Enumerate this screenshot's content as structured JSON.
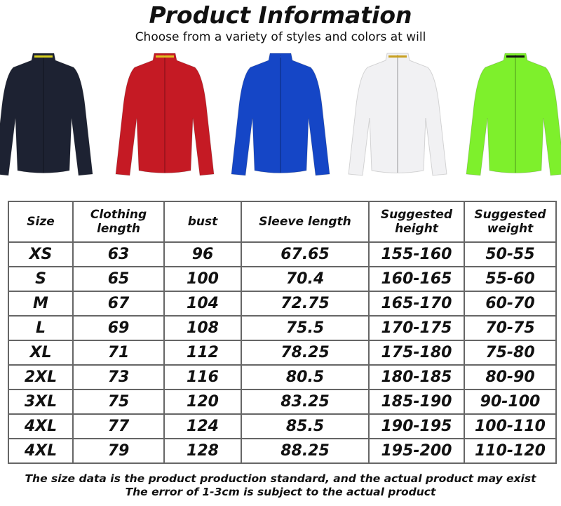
{
  "header": {
    "title": "Product Information",
    "subtitle": "Choose from a variety of styles and colors at will"
  },
  "jackets": [
    {
      "color": "#1d2232",
      "collar_stripe": "#d8d020"
    },
    {
      "color": "#c51a24",
      "collar_stripe": "#e0c020"
    },
    {
      "color": "#1546c6",
      "collar_stripe": "#1546c6"
    },
    {
      "color": "#f1f1f3",
      "collar_stripe": "#c8a020"
    },
    {
      "color": "#7ef02c",
      "collar_stripe": "#111111"
    }
  ],
  "table": {
    "headers": [
      "Size",
      "Clothing length",
      "bust",
      "Sleeve length",
      "Suggested height",
      "Suggested weight"
    ],
    "rows": [
      [
        "XS",
        "63",
        "96",
        "67.65",
        "155-160",
        "50-55"
      ],
      [
        "S",
        "65",
        "100",
        "70.4",
        "160-165",
        "55-60"
      ],
      [
        "M",
        "67",
        "104",
        "72.75",
        "165-170",
        "60-70"
      ],
      [
        "L",
        "69",
        "108",
        "75.5",
        "170-175",
        "70-75"
      ],
      [
        "XL",
        "71",
        "112",
        "78.25",
        "175-180",
        "75-80"
      ],
      [
        "2XL",
        "73",
        "116",
        "80.5",
        "180-185",
        "80-90"
      ],
      [
        "3XL",
        "75",
        "120",
        "83.25",
        "185-190",
        "90-100"
      ],
      [
        "4XL",
        "77",
        "124",
        "85.5",
        "190-195",
        "100-110"
      ],
      [
        "4XL",
        "79",
        "128",
        "88.25",
        "195-200",
        "110-120"
      ]
    ]
  },
  "notes": {
    "line1": "The size data is the product production standard, and the actual product may exist",
    "line2": "The error of 1-3cm is subject to the actual product"
  }
}
